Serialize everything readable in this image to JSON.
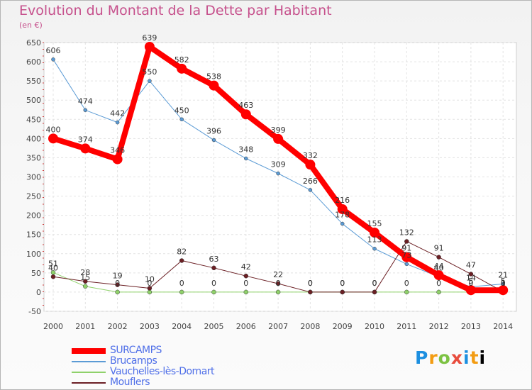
{
  "header": {
    "title": "Evolution du Montant de la Dette par Habitant",
    "subtitle": "(en €)"
  },
  "logo": {
    "letters": [
      "P",
      "r",
      "o",
      "x",
      "i",
      "t",
      "i"
    ],
    "text": "Proxiti"
  },
  "chart_data": {
    "type": "line",
    "x": [
      "2000",
      "2001",
      "2002",
      "2003",
      "2004",
      "2005",
      "2006",
      "2007",
      "2008",
      "2009",
      "2010",
      "2011",
      "2012",
      "2013",
      "2014"
    ],
    "ylim": [
      -50,
      650
    ],
    "yticks": [
      -50,
      0,
      50,
      100,
      150,
      200,
      250,
      300,
      350,
      400,
      450,
      500,
      550,
      600,
      650
    ],
    "grid": true,
    "legend_position": "bottom-left",
    "series": [
      {
        "name": "Brucamps",
        "color": "#5b9bd5",
        "width": 1,
        "marker": 2.5,
        "values": [
          606,
          474,
          442,
          550,
          450,
          396,
          348,
          309,
          266,
          178,
          113,
          73,
          40,
          14,
          21
        ],
        "labels": [
          "606",
          "474",
          "442",
          "550",
          "450",
          "396",
          "348",
          "309",
          "266",
          "178",
          "113",
          "73",
          "40",
          "14",
          "21"
        ]
      },
      {
        "name": "Vauchelles-lès-Domart",
        "color": "#8fd16a",
        "width": 1,
        "marker": 3,
        "values": [
          51,
          15,
          0,
          0,
          0,
          0,
          0,
          0,
          0,
          0,
          0,
          0,
          0,
          0,
          0
        ],
        "labels": [
          "51",
          "15",
          "0",
          "0",
          "0",
          "0",
          "0",
          "0",
          "0",
          "0",
          "0",
          "0",
          "0",
          "0",
          "0"
        ]
      },
      {
        "name": "Mouflers",
        "color": "#6b1f24",
        "width": 1,
        "marker": 3,
        "values": [
          40,
          28,
          19,
          10,
          82,
          63,
          42,
          22,
          0,
          0,
          0,
          132,
          91,
          47,
          1
        ],
        "labels": [
          "40",
          "28",
          "19",
          "10",
          "82",
          "63",
          "42",
          "22",
          "0",
          "0",
          "0",
          "132",
          "91",
          "47",
          "1"
        ]
      },
      {
        "name": "SURCAMPS",
        "color": "#ff0000",
        "width": 8,
        "marker": 7,
        "values": [
          400,
          374,
          346,
          639,
          582,
          538,
          463,
          399,
          332,
          216,
          155,
          91,
          44,
          5,
          5
        ],
        "labels": [
          "400",
          "374",
          "346",
          "639",
          "582",
          "538",
          "463",
          "399",
          "332",
          "216",
          "155",
          "91",
          "44",
          "5",
          "5"
        ]
      }
    ],
    "legend_order": [
      "SURCAMPS",
      "Brucamps",
      "Vauchelles-lès-Domart",
      "Mouflers"
    ]
  }
}
